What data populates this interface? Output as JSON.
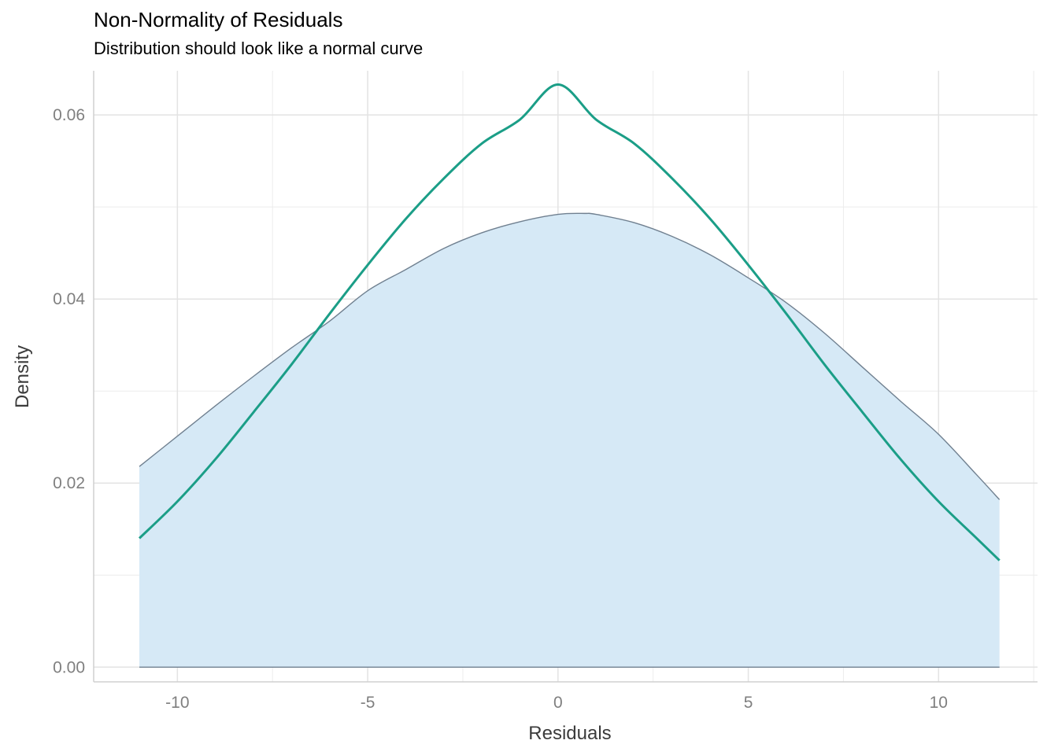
{
  "chart_data": {
    "type": "area",
    "title": "Non-Normality of Residuals",
    "subtitle": "Distribution should look like a normal curve",
    "xlabel": "Residuals",
    "ylabel": "Density",
    "xlim": [
      -12.2,
      12.6
    ],
    "ylim": [
      -0.0016,
      0.0648
    ],
    "x_ticks": [
      -10,
      -5,
      0,
      5,
      10
    ],
    "x_tick_labels": [
      "-10",
      "-5",
      "0",
      "5",
      "10"
    ],
    "y_ticks": [
      0,
      0.02,
      0.04,
      0.06
    ],
    "y_tick_labels": [
      "0.00",
      "0.02",
      "0.04",
      "0.06"
    ],
    "grid": true,
    "series": [
      {
        "kind": "density-area",
        "color": "#708090",
        "fill": "#d6e9f6",
        "x": [
          -11.0,
          -10.0,
          -9.0,
          -8.0,
          -7.0,
          -6.0,
          -5.0,
          -4.0,
          -3.0,
          -2.0,
          -1.0,
          0.0,
          0.7,
          1.0,
          2.0,
          3.0,
          4.0,
          5.0,
          6.0,
          7.0,
          8.0,
          9.0,
          10.0,
          11.0,
          11.6
        ],
        "y": [
          0.0218,
          0.0251,
          0.0284,
          0.0316,
          0.0347,
          0.0376,
          0.0409,
          0.0432,
          0.0455,
          0.0472,
          0.0484,
          0.0492,
          0.0493,
          0.0492,
          0.0483,
          0.0468,
          0.0448,
          0.0423,
          0.0396,
          0.0363,
          0.0326,
          0.0289,
          0.0253,
          0.0209,
          0.0182
        ]
      },
      {
        "kind": "normal-curve",
        "color": "#1b9e87",
        "x": [
          -11.0,
          -10.0,
          -9.0,
          -8.0,
          -7.0,
          -6.0,
          -5.0,
          -4.0,
          -3.0,
          -2.0,
          -1.0,
          0.0,
          1.0,
          2.0,
          3.0,
          4.0,
          5.0,
          6.0,
          7.0,
          8.0,
          9.0,
          10.0,
          11.0,
          11.6
        ],
        "y": [
          0.014,
          0.018,
          0.0226,
          0.0277,
          0.0329,
          0.0384,
          0.0437,
          0.0487,
          0.0531,
          0.0569,
          0.0595,
          0.0633,
          0.0595,
          0.0569,
          0.0531,
          0.0487,
          0.0437,
          0.0384,
          0.0329,
          0.0277,
          0.0226,
          0.018,
          0.014,
          0.0116
        ]
      }
    ]
  }
}
